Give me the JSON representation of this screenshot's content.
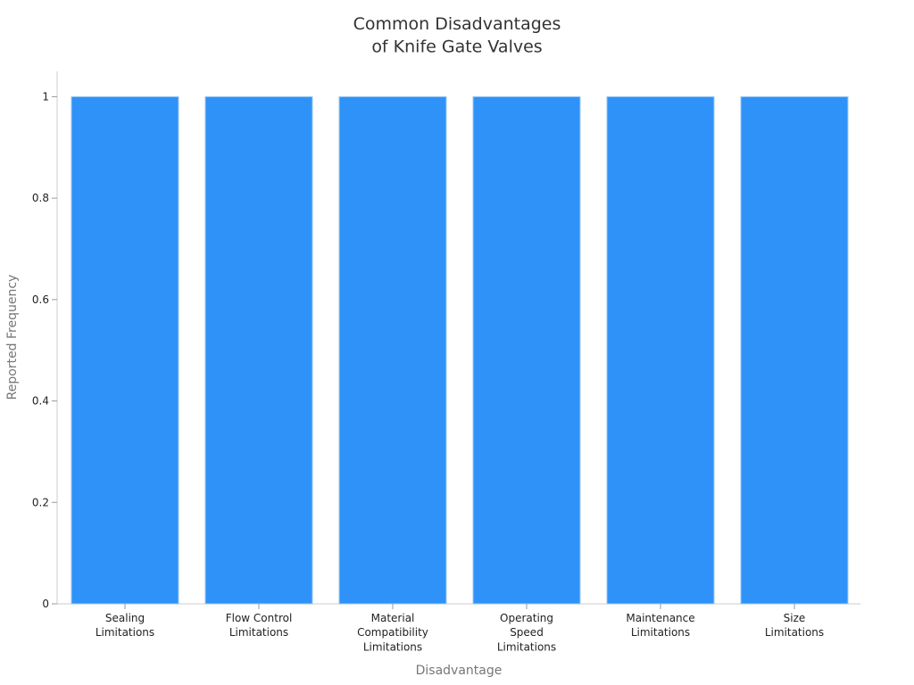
{
  "chart_data": {
    "type": "bar",
    "title": "Common Disadvantages\nof Knife Gate Valves",
    "x_label": "Disadvantage",
    "y_label": "Reported Frequency",
    "categories": [
      "Sealing\nLimitations",
      "Flow Control\nLimitations",
      "Material\nCompatibility\nLimitations",
      "Operating\nSpeed\nLimitations",
      "Maintenance\nLimitations",
      "Size\nLimitations"
    ],
    "values": [
      1,
      1,
      1,
      1,
      1,
      1
    ],
    "color": "#2f92f8",
    "ylim": [
      0,
      1.05
    ],
    "yticks": [
      0,
      0.2,
      0.4,
      0.6,
      0.8,
      1
    ],
    "grid": false
  }
}
